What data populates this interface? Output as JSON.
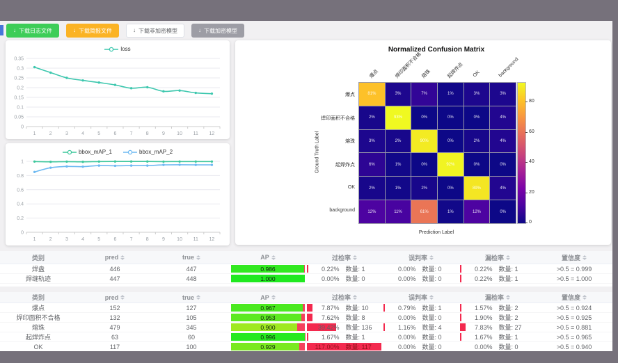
{
  "toolbar": {
    "download_icon": "↓",
    "buttons": [
      {
        "id": "download-log",
        "label": "下载日志文件",
        "bg": "#3dcd58",
        "fg": "#ffffff",
        "border": "#3dcd58"
      },
      {
        "id": "download-report",
        "label": "下载简报文件",
        "bg": "#fbb324",
        "fg": "#ffffff",
        "border": "#fbb324"
      },
      {
        "id": "download-plain-model",
        "label": "下载非加密模型",
        "bg": "#ffffff",
        "fg": "#606266",
        "border": "#dcdfe6"
      },
      {
        "id": "download-enc-model",
        "label": "下载加密模型",
        "bg": "#9d9da5",
        "fg": "#ffffff",
        "border": "#9d9da5"
      }
    ]
  },
  "chart_data": [
    {
      "type": "line",
      "title": "",
      "x": [
        1,
        2,
        3,
        4,
        5,
        6,
        7,
        8,
        9,
        10,
        11,
        12
      ],
      "ylim": [
        0,
        0.35
      ],
      "yticks": [
        0,
        0.05,
        0.1,
        0.15,
        0.2,
        0.25,
        0.3,
        0.35
      ],
      "legend_position": "top",
      "grid": true,
      "series": [
        {
          "name": "loss",
          "color": "#3dc7ae",
          "values": [
            0.305,
            0.277,
            0.25,
            0.237,
            0.226,
            0.214,
            0.197,
            0.202,
            0.181,
            0.185,
            0.173,
            0.169
          ]
        }
      ]
    },
    {
      "type": "line",
      "title": "",
      "x": [
        1,
        2,
        3,
        4,
        5,
        6,
        7,
        8,
        9,
        10,
        11,
        12
      ],
      "ylim": [
        0,
        1
      ],
      "yticks": [
        0,
        0.2,
        0.4,
        0.6,
        0.8,
        1
      ],
      "legend_position": "top",
      "grid": true,
      "series": [
        {
          "name": "bbox_mAP_1",
          "color": "#3dc79c",
          "values": [
            0.997,
            0.993,
            0.996,
            0.993,
            0.997,
            0.998,
            0.998,
            0.998,
            0.996,
            0.997,
            0.997,
            0.997
          ]
        },
        {
          "name": "bbox_mAP_2",
          "color": "#6db9f2",
          "values": [
            0.85,
            0.91,
            0.928,
            0.925,
            0.94,
            0.937,
            0.94,
            0.94,
            0.95,
            0.952,
            0.95,
            0.95
          ]
        }
      ]
    },
    {
      "type": "heatmap",
      "title": "Normalized Confusion Matrix",
      "xlabel": "Prediction Label",
      "ylabel": "Ground Truth Label",
      "labels": [
        "爆点",
        "焊印面积不合格",
        "熔珠",
        "起焊炸点",
        "OK",
        "background"
      ],
      "values_pct": [
        [
          81,
          3,
          7,
          1,
          3,
          3
        ],
        [
          2,
          93,
          0,
          0,
          0,
          4
        ],
        [
          3,
          2,
          90,
          0,
          2,
          4
        ],
        [
          6,
          1,
          0,
          92,
          0,
          0
        ],
        [
          2,
          1,
          2,
          0,
          89,
          4
        ],
        [
          12,
          11,
          61,
          1,
          12,
          0
        ]
      ],
      "colormap": "plasma",
      "colorbar": {
        "ticks": [
          0,
          20,
          40,
          60,
          80
        ],
        "max": 93
      }
    }
  ],
  "confusion_matrix": {
    "title": "Normalized Confusion Matrix",
    "xlabel": "Prediction Label",
    "ylabel": "Ground Truth Label"
  },
  "tables": {
    "count_prefix": "数量:",
    "headers": [
      {
        "label": "类别",
        "sortable": false
      },
      {
        "label": "pred",
        "sortable": true
      },
      {
        "label": "true",
        "sortable": true
      },
      {
        "label": "AP",
        "sortable": true
      },
      {
        "label": "过检率",
        "sortable": true
      },
      {
        "label": "误判率",
        "sortable": true
      },
      {
        "label": "漏检率",
        "sortable": true
      },
      {
        "label": "置信度",
        "sortable": true
      }
    ],
    "table1_rows": [
      {
        "class": "焊盘",
        "pred": "446",
        "true": "447",
        "ap": "0.986",
        "over_rate": "0.22%",
        "over_count": "1",
        "mis_rate": "0.00%",
        "mis_count": "0",
        "miss_rate": "0.22%",
        "miss_count": "1",
        "conf": ">0.5 = 0.999"
      },
      {
        "class": "焊缝轨迹",
        "pred": "447",
        "true": "448",
        "ap": "1.000",
        "over_rate": "0.00%",
        "over_count": "0",
        "mis_rate": "0.00%",
        "mis_count": "0",
        "miss_rate": "0.22%",
        "miss_count": "1",
        "conf": ">0.5 = 1.000"
      }
    ],
    "table2_rows": [
      {
        "class": "爆点",
        "pred": "152",
        "true": "127",
        "ap": "0.967",
        "over_rate": "7.87%",
        "over_count": "10",
        "mis_rate": "0.79%",
        "mis_count": "1",
        "miss_rate": "1.57%",
        "miss_count": "2",
        "conf": ">0.5 = 0.924"
      },
      {
        "class": "焊印面积不合格",
        "pred": "132",
        "true": "105",
        "ap": "0.953",
        "over_rate": "7.62%",
        "over_count": "8",
        "mis_rate": "0.00%",
        "mis_count": "0",
        "miss_rate": "1.90%",
        "miss_count": "2",
        "conf": ">0.5 = 0.925"
      },
      {
        "class": "熔珠",
        "pred": "479",
        "true": "345",
        "ap": "0.900",
        "over_rate": "39.42%",
        "over_count": "136",
        "mis_rate": "1.16%",
        "mis_count": "4",
        "miss_rate": "7.83%",
        "miss_count": "27",
        "conf": ">0.5 = 0.881"
      },
      {
        "class": "起焊炸点",
        "pred": "63",
        "true": "60",
        "ap": "0.996",
        "over_rate": "1.67%",
        "over_count": "1",
        "mis_rate": "0.00%",
        "mis_count": "0",
        "miss_rate": "1.67%",
        "miss_count": "1",
        "conf": ">0.5 = 0.965"
      },
      {
        "class": "OK",
        "pred": "117",
        "true": "100",
        "ap": "0.929",
        "over_rate": "117.00%",
        "over_count": "117",
        "mis_rate": "0.00%",
        "mis_count": "0",
        "miss_rate": "0.00%",
        "miss_count": "0",
        "conf": ">0.5 = 0.940"
      }
    ]
  }
}
